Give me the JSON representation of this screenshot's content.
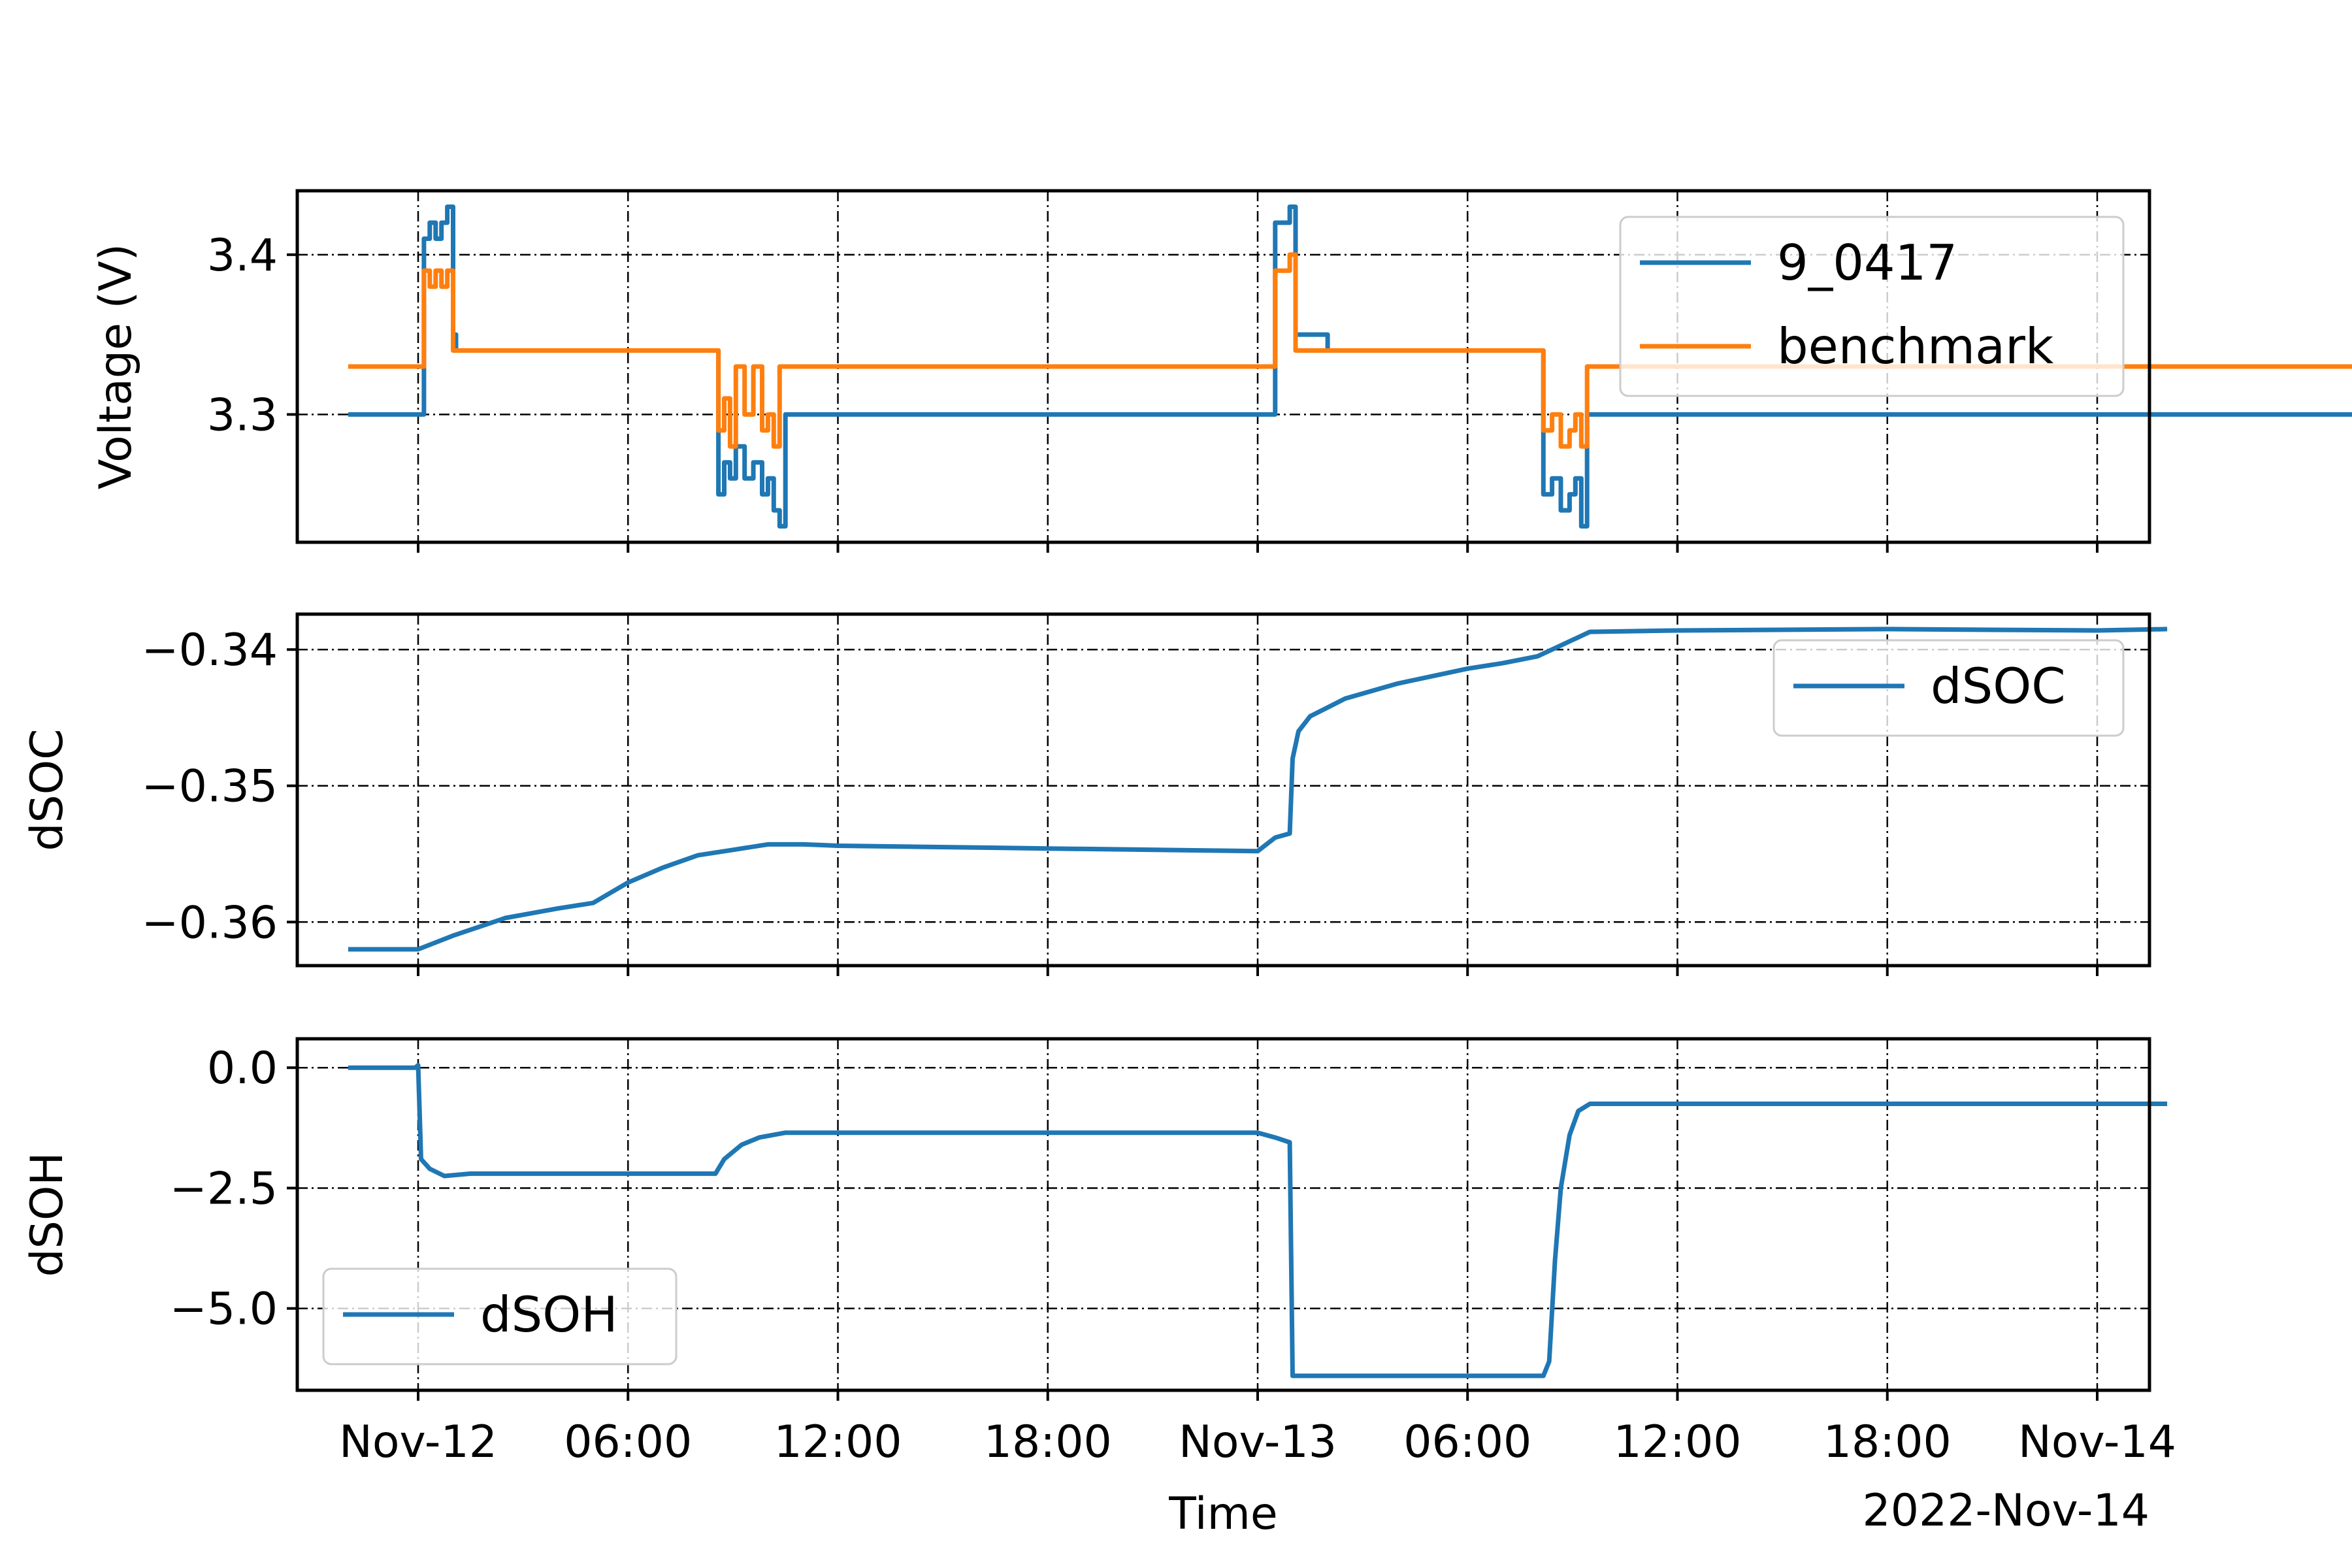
{
  "colors": {
    "blue": "#1f77b4",
    "orange": "#ff7f0e",
    "grid": "#000000",
    "axes": "#000000"
  },
  "chart_data": [
    {
      "type": "line",
      "ylabel": "Voltage (V)",
      "ylim": [
        3.22,
        3.44
      ],
      "yticks": [
        "3.3",
        "3.4"
      ],
      "grid": true,
      "legend": {
        "placement": "top-right",
        "entries": [
          "9_0417",
          "benchmark"
        ]
      },
      "series": [
        {
          "name": "9_0417",
          "x": [
            "2022-11-11T22:00",
            "2022-11-12T00:00",
            "2022-11-12T00:01",
            "2022-11-12T00:10",
            "2022-11-12T00:20",
            "2022-11-12T00:30",
            "2022-11-12T00:40",
            "2022-11-12T00:50",
            "2022-11-12T01:00",
            "2022-11-12T01:05",
            "2022-11-12T01:10",
            "2022-11-12T01:20",
            "2022-11-12T01:40",
            "2022-11-12T02:00",
            "2022-11-12T08:30",
            "2022-11-12T08:35",
            "2022-11-12T08:45",
            "2022-11-12T08:55",
            "2022-11-12T09:05",
            "2022-11-12T09:20",
            "2022-11-12T09:35",
            "2022-11-12T09:50",
            "2022-11-12T10:00",
            "2022-11-12T10:10",
            "2022-11-12T10:20",
            "2022-11-12T10:30",
            "2022-11-12T11:00",
            "2022-11-13T00:00",
            "2022-11-13T00:01",
            "2022-11-13T00:30",
            "2022-11-13T00:45",
            "2022-11-13T00:55",
            "2022-11-13T01:05",
            "2022-11-13T02:00",
            "2022-11-13T08:00",
            "2022-11-13T08:10",
            "2022-11-13T08:25",
            "2022-11-13T08:40",
            "2022-11-13T08:55",
            "2022-11-13T09:05",
            "2022-11-13T09:15",
            "2022-11-13T09:25",
            "2022-11-13T10:00",
            "2022-11-14T00:00",
            "2022-11-14T02:00",
            "2022-11-14T06:00",
            "2022-11-14T12:00",
            "2022-11-14T22:00",
            "2022-11-14T23:59"
          ],
          "y": [
            3.3,
            3.3,
            3.3,
            3.41,
            3.42,
            3.41,
            3.42,
            3.43,
            3.35,
            3.34,
            3.34,
            3.34,
            3.34,
            3.34,
            3.34,
            3.25,
            3.27,
            3.26,
            3.28,
            3.26,
            3.27,
            3.25,
            3.26,
            3.24,
            3.23,
            3.3,
            3.3,
            3.3,
            3.3,
            3.42,
            3.42,
            3.43,
            3.35,
            3.34,
            3.34,
            3.25,
            3.26,
            3.24,
            3.25,
            3.26,
            3.23,
            3.3,
            3.3,
            3.3,
            3.3,
            3.3,
            3.3,
            3.3,
            3.3
          ]
        },
        {
          "name": "benchmark",
          "x": [
            "2022-11-11T22:00",
            "2022-11-12T00:00",
            "2022-11-12T00:01",
            "2022-11-12T00:10",
            "2022-11-12T00:20",
            "2022-11-12T00:30",
            "2022-11-12T00:40",
            "2022-11-12T00:50",
            "2022-11-12T01:00",
            "2022-11-12T01:05",
            "2022-11-12T01:10",
            "2022-11-12T01:20",
            "2022-11-12T01:40",
            "2022-11-12T02:00",
            "2022-11-12T08:30",
            "2022-11-12T08:35",
            "2022-11-12T08:45",
            "2022-11-12T08:55",
            "2022-11-12T09:05",
            "2022-11-12T09:20",
            "2022-11-12T09:35",
            "2022-11-12T09:50",
            "2022-11-12T10:00",
            "2022-11-12T10:10",
            "2022-11-12T10:20",
            "2022-11-12T10:30",
            "2022-11-12T11:00",
            "2022-11-13T00:00",
            "2022-11-13T00:01",
            "2022-11-13T00:30",
            "2022-11-13T00:45",
            "2022-11-13T00:55",
            "2022-11-13T01:05",
            "2022-11-13T02:00",
            "2022-11-13T08:00",
            "2022-11-13T08:10",
            "2022-11-13T08:25",
            "2022-11-13T08:40",
            "2022-11-13T08:55",
            "2022-11-13T09:05",
            "2022-11-13T09:15",
            "2022-11-13T09:25",
            "2022-11-13T10:00",
            "2022-11-14T00:00",
            "2022-11-14T02:00",
            "2022-11-14T06:00",
            "2022-11-14T12:00",
            "2022-11-14T22:00",
            "2022-11-14T23:59"
          ],
          "y": [
            3.33,
            3.33,
            3.33,
            3.39,
            3.38,
            3.39,
            3.38,
            3.39,
            3.34,
            3.34,
            3.34,
            3.34,
            3.34,
            3.34,
            3.34,
            3.29,
            3.31,
            3.28,
            3.33,
            3.3,
            3.33,
            3.29,
            3.3,
            3.28,
            3.33,
            3.33,
            3.33,
            3.33,
            3.33,
            3.39,
            3.39,
            3.4,
            3.34,
            3.34,
            3.34,
            3.29,
            3.3,
            3.28,
            3.29,
            3.3,
            3.28,
            3.33,
            3.33,
            3.33,
            3.33,
            3.33,
            3.33,
            3.33,
            3.33
          ]
        }
      ]
    },
    {
      "type": "line",
      "ylabel": "dSOC",
      "ylim": [
        -0.3632,
        -0.3374
      ],
      "yticks": [
        "−0.34",
        "−0.35",
        "−0.36"
      ],
      "grid": true,
      "legend": {
        "placement": "top-right",
        "entries": [
          "dSOC"
        ]
      },
      "series": [
        {
          "name": "dSOC",
          "x": [
            "2022-11-11T22:00",
            "2022-11-12T00:00",
            "2022-11-12T01:00",
            "2022-11-12T02:30",
            "2022-11-12T04:00",
            "2022-11-12T05:00",
            "2022-11-12T06:00",
            "2022-11-12T07:00",
            "2022-11-12T08:00",
            "2022-11-12T09:00",
            "2022-11-12T10:00",
            "2022-11-12T11:00",
            "2022-11-12T12:00",
            "2022-11-12T18:00",
            "2022-11-13T00:00",
            "2022-11-13T00:30",
            "2022-11-13T00:55",
            "2022-11-13T01:00",
            "2022-11-13T01:10",
            "2022-11-13T01:30",
            "2022-11-13T02:30",
            "2022-11-13T04:00",
            "2022-11-13T06:00",
            "2022-11-13T07:00",
            "2022-11-13T08:00",
            "2022-11-13T08:30",
            "2022-11-13T09:30",
            "2022-11-13T12:00",
            "2022-11-13T18:00",
            "2022-11-14T00:00",
            "2022-11-14T02:00"
          ],
          "y": [
            -0.362,
            -0.362,
            -0.361,
            -0.3597,
            -0.359,
            -0.3586,
            -0.3571,
            -0.356,
            -0.3551,
            -0.3547,
            -0.3543,
            -0.3543,
            -0.3544,
            -0.3546,
            -0.3548,
            -0.3538,
            -0.3535,
            -0.348,
            -0.346,
            -0.3449,
            -0.3436,
            -0.3425,
            -0.3414,
            -0.341,
            -0.3405,
            -0.3399,
            -0.3387,
            -0.3386,
            -0.3385,
            -0.3386,
            -0.3385
          ]
        }
      ]
    },
    {
      "type": "line",
      "ylabel": "dSOH",
      "xlabel": "Time",
      "ylim": [
        -6.7,
        0.6
      ],
      "yticks": [
        "0.0",
        "−2.5",
        "−5.0"
      ],
      "xticks": [
        "Nov-12",
        "06:00",
        "12:00",
        "18:00",
        "Nov-13",
        "06:00",
        "12:00",
        "18:00",
        "Nov-14"
      ],
      "offset_label": "2022-Nov-14",
      "grid": true,
      "legend": {
        "placement": "bottom-left",
        "entries": [
          "dSOH"
        ]
      },
      "series": [
        {
          "name": "dSOH",
          "x": [
            "2022-11-11T22:00",
            "2022-11-11T23:55",
            "2022-11-12T00:00",
            "2022-11-12T00:05",
            "2022-11-12T00:20",
            "2022-11-12T00:45",
            "2022-11-12T01:30",
            "2022-11-12T05:00",
            "2022-11-12T08:30",
            "2022-11-12T08:45",
            "2022-11-12T09:15",
            "2022-11-12T09:45",
            "2022-11-12T10:30",
            "2022-11-12T18:00",
            "2022-11-13T00:00",
            "2022-11-13T00:30",
            "2022-11-13T00:55",
            "2022-11-13T01:00",
            "2022-11-13T01:20",
            "2022-11-13T04:00",
            "2022-11-13T08:10",
            "2022-11-13T08:20",
            "2022-11-13T08:30",
            "2022-11-13T08:40",
            "2022-11-13T08:55",
            "2022-11-13T09:10",
            "2022-11-13T09:30",
            "2022-11-13T09:45",
            "2022-11-13T12:00",
            "2022-11-14T00:00",
            "2022-11-14T02:00"
          ],
          "y": [
            0.0,
            0.0,
            0.05,
            -1.9,
            -2.1,
            -2.25,
            -2.2,
            -2.2,
            -2.2,
            -1.9,
            -1.6,
            -1.45,
            -1.35,
            -1.35,
            -1.35,
            -1.45,
            -1.55,
            -6.4,
            -6.4,
            -6.4,
            -6.4,
            -6.1,
            -4.0,
            -2.5,
            -1.4,
            -0.9,
            -0.75,
            -0.75,
            -0.75,
            -0.75,
            -0.75
          ]
        }
      ]
    }
  ]
}
